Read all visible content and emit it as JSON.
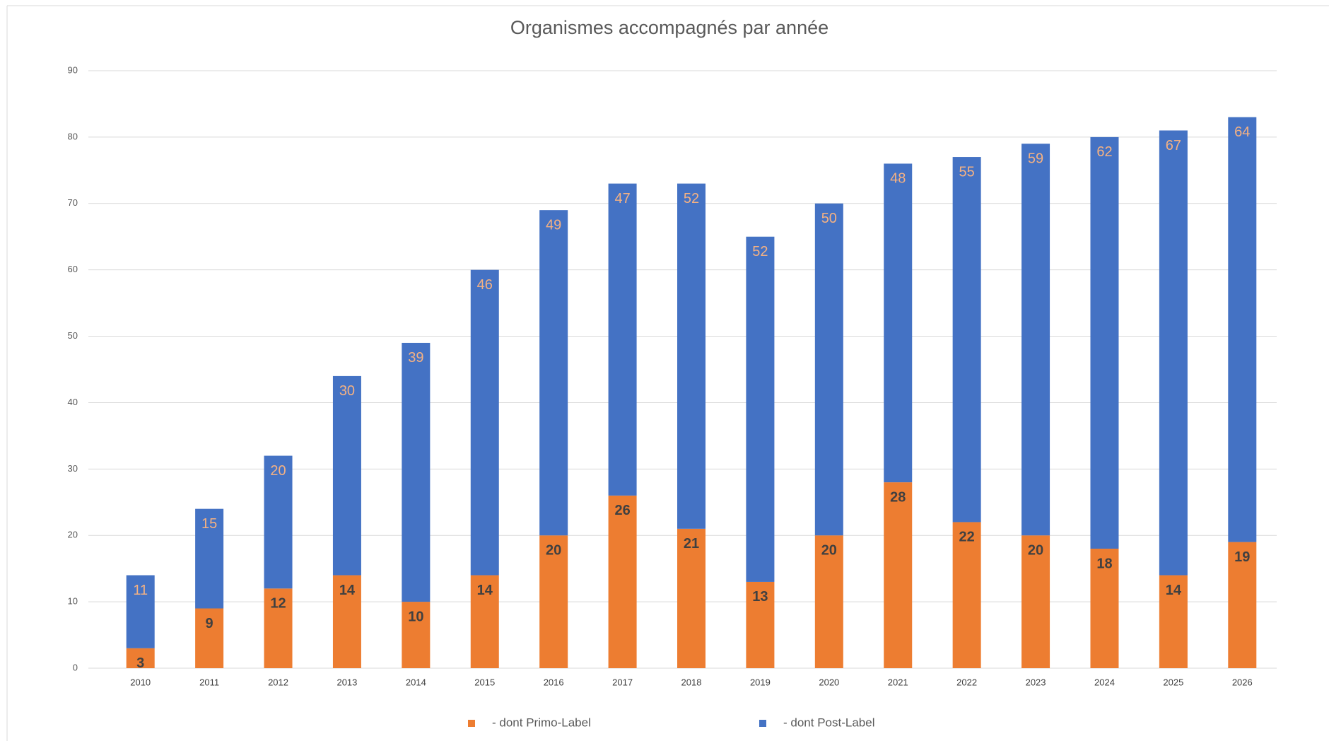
{
  "chart_data": {
    "type": "stacked_bar",
    "title": "Organismes accompagnés par année",
    "categories": [
      "2010",
      "2011",
      "2012",
      "2013",
      "2014",
      "2015",
      "2016",
      "2017",
      "2018",
      "2019",
      "2020",
      "2021",
      "2022",
      "2023",
      "2024",
      "2025",
      "2026"
    ],
    "series": [
      {
        "name": "- dont Primo-Label",
        "color": "#ed7d31",
        "label_color": "#404040",
        "values": [
          3,
          9,
          12,
          14,
          10,
          14,
          20,
          26,
          21,
          13,
          20,
          28,
          22,
          20,
          18,
          14,
          19
        ]
      },
      {
        "name": "- dont Post-Label",
        "color": "#4472c4",
        "label_color": "#f4b183",
        "values": [
          11,
          15,
          20,
          30,
          39,
          46,
          49,
          47,
          52,
          52,
          50,
          48,
          55,
          59,
          62,
          67,
          64
        ]
      }
    ],
    "ylim": [
      0,
      90
    ],
    "yticks": [
      0,
      10,
      20,
      30,
      40,
      50,
      60,
      70,
      80,
      90
    ],
    "grid": true,
    "legend": "bottom"
  }
}
